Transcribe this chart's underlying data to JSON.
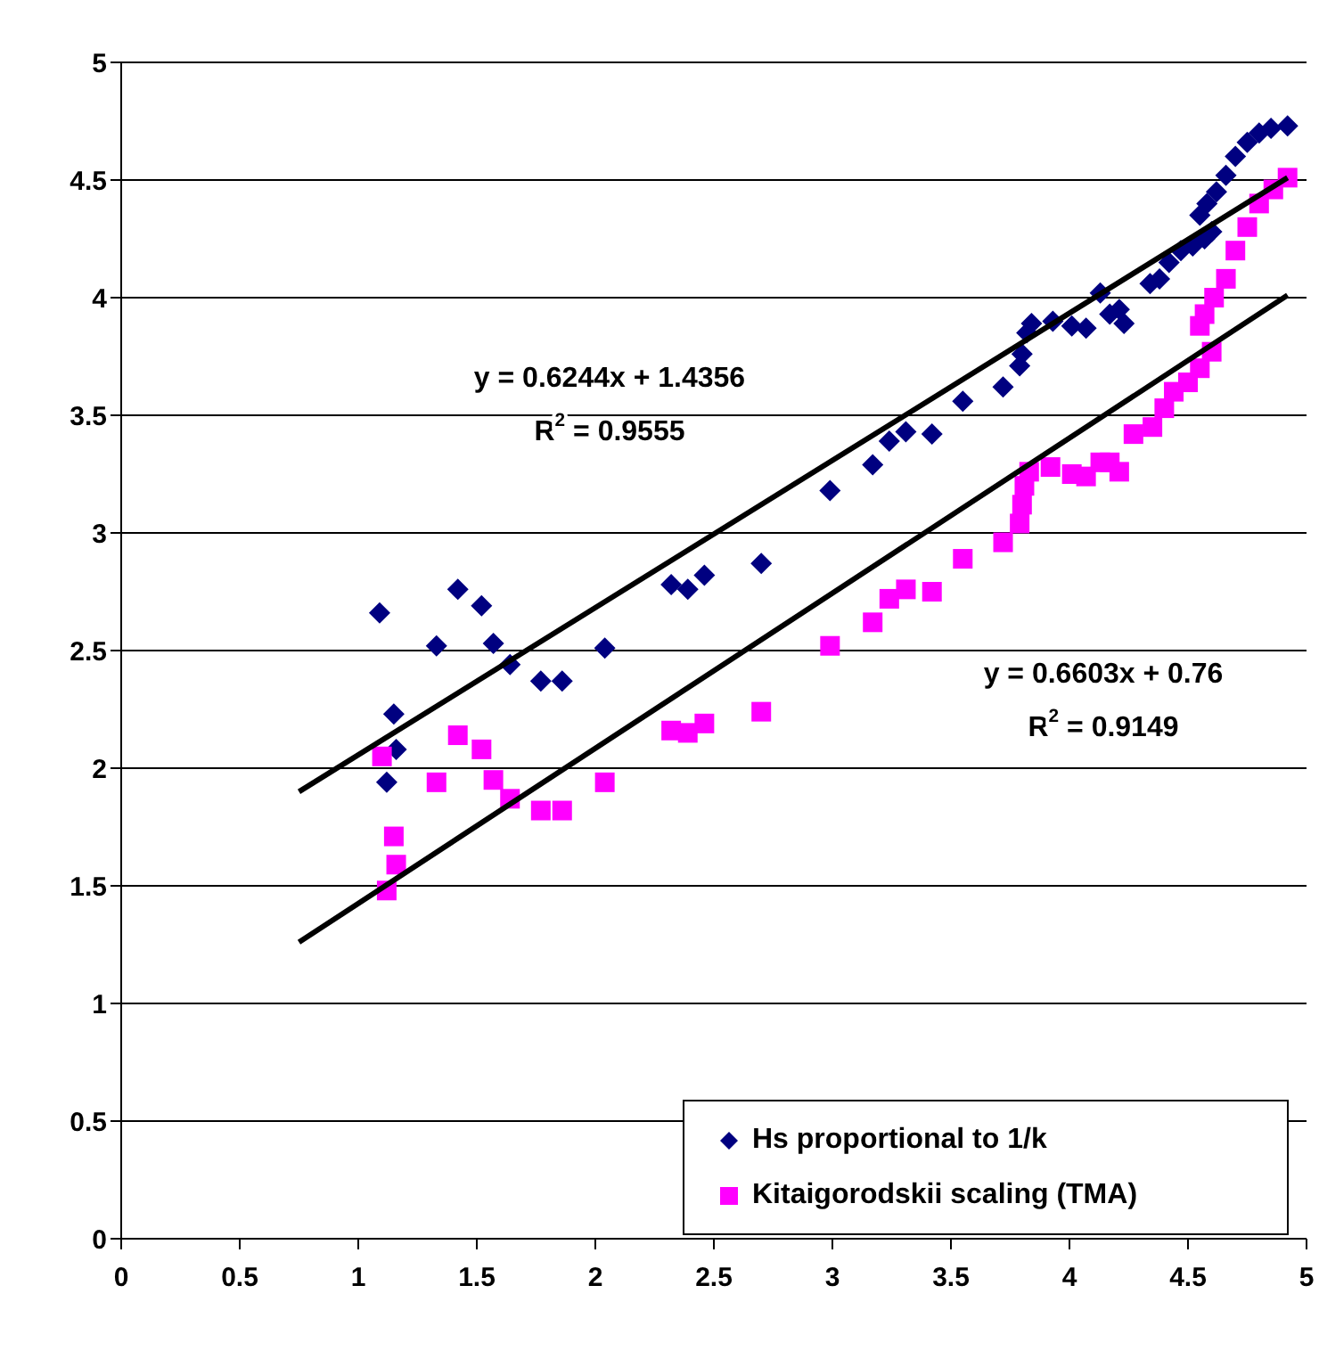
{
  "chart_data": {
    "type": "scatter",
    "xlim": [
      0,
      5
    ],
    "ylim": [
      0,
      5
    ],
    "xticks": [
      0,
      0.5,
      1,
      1.5,
      2,
      2.5,
      3,
      3.5,
      4,
      4.5,
      5
    ],
    "yticks": [
      0,
      0.5,
      1,
      1.5,
      2,
      2.5,
      3,
      3.5,
      4,
      4.5,
      5
    ],
    "grid": "y",
    "legend": "bottom right",
    "series": [
      {
        "name": "Hs proportional to 1/k",
        "color": "#000080",
        "marker": "diamond",
        "x": [
          1.09,
          1.12,
          1.15,
          1.16,
          1.33,
          1.42,
          1.52,
          1.57,
          1.64,
          1.77,
          1.86,
          2.04,
          2.32,
          2.39,
          2.46,
          2.7,
          2.99,
          3.17,
          3.24,
          3.31,
          3.42,
          3.55,
          3.72,
          3.79,
          3.8,
          3.82,
          3.84,
          3.93,
          4.01,
          4.07,
          4.13,
          4.17,
          4.21,
          4.23,
          4.34,
          4.38,
          4.42,
          4.47,
          4.52,
          4.57,
          4.6,
          4.55,
          4.58,
          4.62,
          4.66,
          4.7,
          4.75,
          4.8,
          4.85,
          4.92
        ],
        "values": [
          2.66,
          1.94,
          2.23,
          2.08,
          2.52,
          2.76,
          2.69,
          2.53,
          2.44,
          2.37,
          2.37,
          2.51,
          2.78,
          2.76,
          2.82,
          2.87,
          3.18,
          3.29,
          3.39,
          3.43,
          3.42,
          3.56,
          3.62,
          3.71,
          3.76,
          3.85,
          3.89,
          3.9,
          3.88,
          3.87,
          4.02,
          3.93,
          3.95,
          3.89,
          4.06,
          4.08,
          4.15,
          4.2,
          4.22,
          4.25,
          4.28,
          4.35,
          4.4,
          4.45,
          4.52,
          4.6,
          4.66,
          4.7,
          4.72,
          4.73
        ]
      },
      {
        "name": "Kitaigorodskii scaling (TMA)",
        "color": "#ff00ff",
        "marker": "square",
        "x": [
          1.1,
          1.12,
          1.15,
          1.16,
          1.33,
          1.42,
          1.52,
          1.57,
          1.64,
          1.77,
          1.86,
          2.04,
          2.32,
          2.39,
          2.46,
          2.7,
          2.99,
          3.17,
          3.24,
          3.31,
          3.42,
          3.55,
          3.72,
          3.79,
          3.8,
          3.81,
          3.83,
          3.92,
          4.01,
          4.07,
          4.13,
          4.17,
          4.21,
          4.27,
          4.35,
          4.4,
          4.44,
          4.5,
          4.55,
          4.6,
          4.55,
          4.57,
          4.61,
          4.66,
          4.7,
          4.75,
          4.8,
          4.86,
          4.92
        ],
        "values": [
          2.05,
          1.48,
          1.71,
          1.59,
          1.94,
          2.14,
          2.08,
          1.95,
          1.87,
          1.82,
          1.82,
          1.94,
          2.16,
          2.15,
          2.19,
          2.24,
          2.52,
          2.62,
          2.72,
          2.76,
          2.75,
          2.89,
          2.96,
          3.04,
          3.12,
          3.2,
          3.26,
          3.28,
          3.25,
          3.24,
          3.3,
          3.3,
          3.26,
          3.42,
          3.45,
          3.53,
          3.6,
          3.64,
          3.7,
          3.77,
          3.88,
          3.93,
          4.0,
          4.08,
          4.2,
          4.3,
          4.4,
          4.46,
          4.51
        ]
      },
      {
        "type": "line",
        "color": "#000000",
        "x": [
          0.75,
          4.92
        ],
        "values": [
          1.9,
          4.51
        ]
      },
      {
        "type": "line",
        "color": "#000000",
        "x": [
          0.75,
          4.92
        ],
        "values": [
          1.26,
          4.01
        ]
      }
    ],
    "annotations": [
      "y = 0.6244x + 1.4356",
      "R$^{2}$ = 0.9555",
      "y = 0.6603x + 0.76",
      "R$^{2}$ = 0.9149"
    ]
  }
}
